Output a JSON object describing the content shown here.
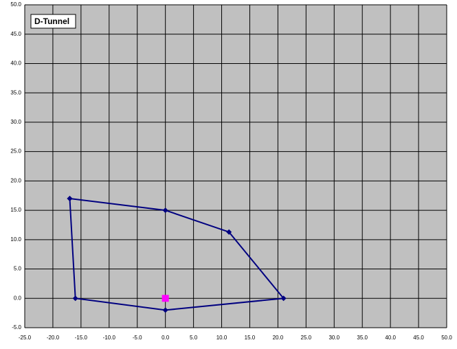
{
  "chart_data": {
    "type": "scatter",
    "title": "D-Tunnel",
    "series": [
      {
        "color": "#000080",
        "marker": "diamond",
        "line": true,
        "x": [
          -17,
          0,
          11.3,
          21,
          0,
          -16,
          -17
        ],
        "y": [
          17,
          15,
          11.3,
          0,
          -2,
          0,
          17
        ]
      },
      {
        "color": "#ff00ff",
        "marker": "square",
        "line": false,
        "x": [
          0
        ],
        "y": [
          0
        ]
      }
    ],
    "xlim": [
      -25,
      50
    ],
    "ylim": [
      -5,
      50
    ],
    "xticks": [
      {
        "value": -25,
        "label": "-25.0"
      },
      {
        "value": -20,
        "label": "-20.0"
      },
      {
        "value": -15,
        "label": "-15.0"
      },
      {
        "value": -10,
        "label": "-10.0"
      },
      {
        "value": -5,
        "label": "-5.0"
      },
      {
        "value": 0,
        "label": "0.0"
      },
      {
        "value": 5,
        "label": "5.0"
      },
      {
        "value": 10,
        "label": "10.0"
      },
      {
        "value": 15,
        "label": "15.0"
      },
      {
        "value": 20,
        "label": "20.0"
      },
      {
        "value": 25,
        "label": "25.0"
      },
      {
        "value": 30,
        "label": "30.0"
      },
      {
        "value": 35,
        "label": "35.0"
      },
      {
        "value": 40,
        "label": "40.0"
      },
      {
        "value": 45,
        "label": "45.0"
      },
      {
        "value": 50,
        "label": "50.0"
      }
    ],
    "yticks": [
      {
        "value": -5,
        "label": "-5.0"
      },
      {
        "value": 0,
        "label": "0.0"
      },
      {
        "value": 5,
        "label": "5.0"
      },
      {
        "value": 10,
        "label": "10.0"
      },
      {
        "value": 15,
        "label": "15.0"
      },
      {
        "value": 20,
        "label": "20.0"
      },
      {
        "value": 25,
        "label": "25.0"
      },
      {
        "value": 30,
        "label": "30.0"
      },
      {
        "value": 35,
        "label": "35.0"
      },
      {
        "value": 40,
        "label": "40.0"
      },
      {
        "value": 45,
        "label": "45.0"
      },
      {
        "value": 50,
        "label": "50.0"
      }
    ],
    "grid": true,
    "background": "#c0c0c0"
  }
}
